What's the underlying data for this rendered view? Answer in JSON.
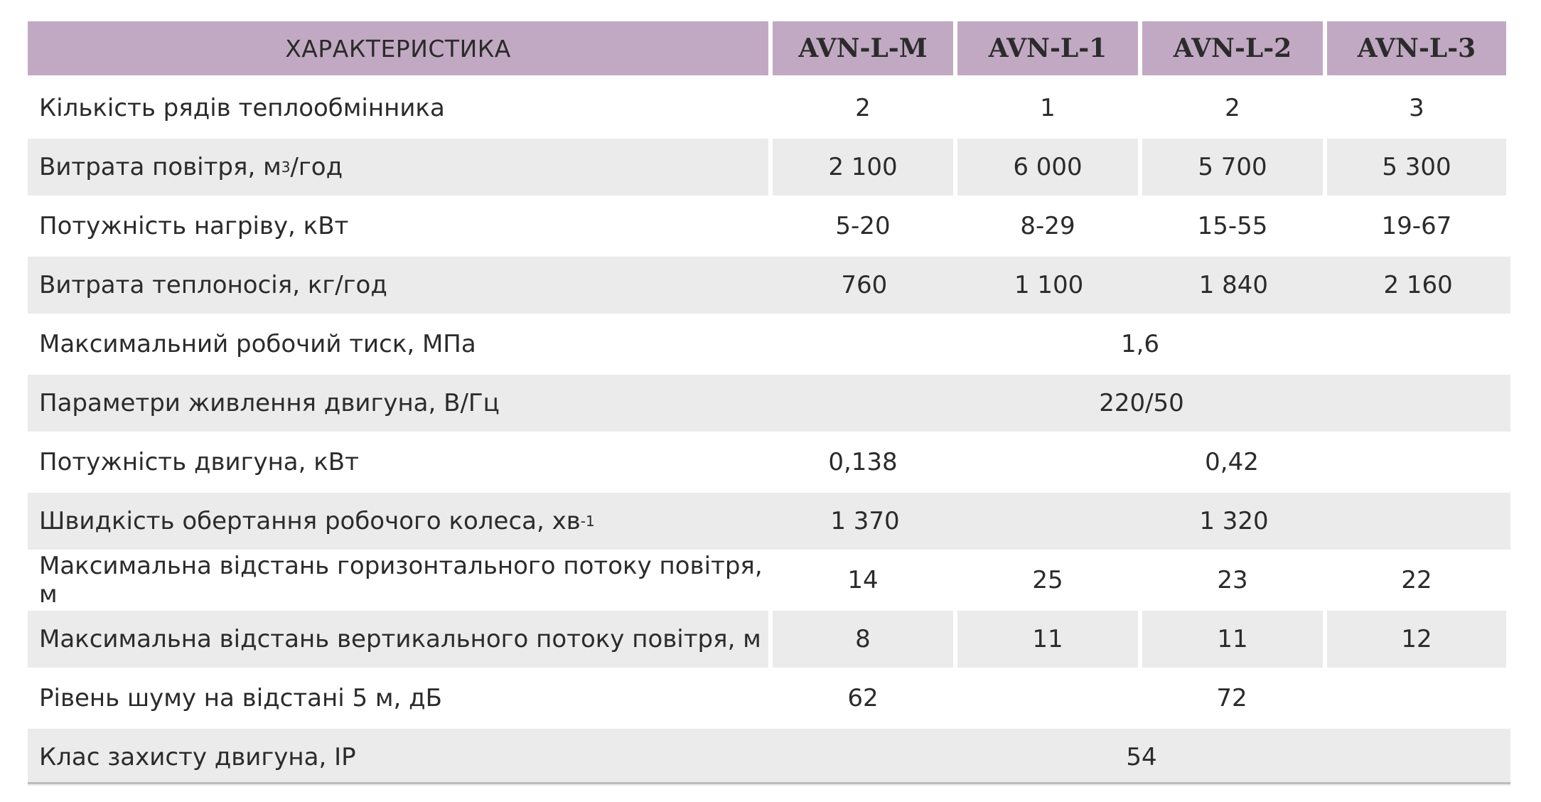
{
  "header": {
    "characteristic": "ХАРАКТЕРИСТИКА",
    "models": [
      "AVN-L-M",
      "AVN-L-1",
      "AVN-L-2",
      "AVN-L-3"
    ]
  },
  "rows": [
    {
      "label": "Кількість рядів теплообмінника",
      "values": [
        "2",
        "1",
        "2",
        "3"
      ]
    },
    {
      "label_prefix": "Витрата повітря, м",
      "label_sup": "3",
      "label_suffix": "/год",
      "values": [
        "2 100",
        "6 000",
        "5 700",
        "5 300"
      ]
    },
    {
      "label": "Потужність нагріву, кВт",
      "values": [
        "5-20",
        "8-29",
        "15-55",
        "19-67"
      ]
    },
    {
      "label": "Витрата теплоносія, кг/год",
      "values": [
        "760",
        "1 100",
        "1 840",
        "2 160"
      ]
    },
    {
      "label": "Максимальний робочий тиск, МПа",
      "value_all": "1,6"
    },
    {
      "label": "Параметри живлення двигуна, В/Гц",
      "value_all": "220/50"
    },
    {
      "label": "Потужність двигуна, кВт",
      "value_first": "0,138",
      "value_rest": "0,42"
    },
    {
      "label_prefix": "Швидкість обертання робочого колеса, хв",
      "label_sup": "-1",
      "value_first": "1 370",
      "value_rest": "1 320"
    },
    {
      "label": "Максимальна відстань горизонтального потоку повітря, м",
      "values": [
        "14",
        "25",
        "23",
        "22"
      ]
    },
    {
      "label": "Максимальна відстань вертикального потоку повітря, м",
      "values": [
        "8",
        "11",
        "11",
        "12"
      ]
    },
    {
      "label": "Рівень шуму на відстані 5 м, дБ",
      "value_first": "62",
      "value_rest": "72"
    },
    {
      "label": "Клас захисту двигуна, IP",
      "value_all": "54"
    }
  ],
  "colors": {
    "header_bg": "#c2a9c3",
    "shade_bg": "#ebebeb",
    "text": "#2b2b2b"
  }
}
